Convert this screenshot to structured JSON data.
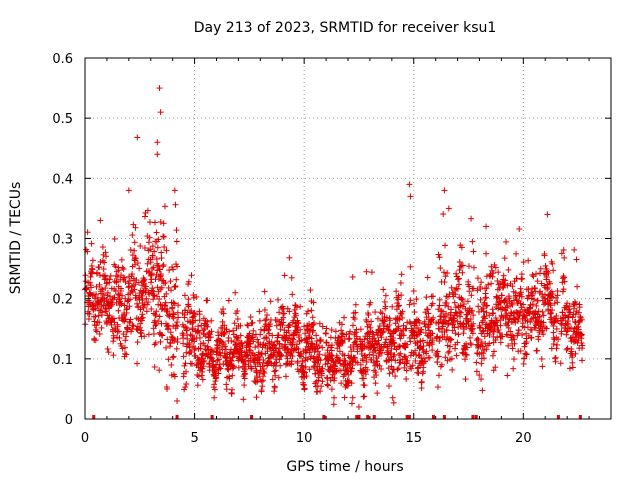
{
  "chart_data": {
    "type": "scatter",
    "marker": "plus",
    "title": "Day 213 of 2023, SRMTID for receiver ksu1",
    "xlabel": "GPS time / hours",
    "ylabel": "SRMTID / TECUs",
    "xlim": [
      0,
      24
    ],
    "ylim": [
      0,
      0.6
    ],
    "grid": true,
    "x_ticks": [
      0,
      5,
      10,
      15,
      20
    ],
    "x_tick_labels": [
      "0",
      "5",
      "10",
      "15",
      "20"
    ],
    "y_ticks": [
      0,
      0.1,
      0.2,
      0.3,
      0.4,
      0.5,
      0.6
    ],
    "y_tick_labels": [
      "0",
      "0.1",
      "0.2",
      "0.3",
      "0.4",
      "0.5",
      "0.6"
    ],
    "color": "#e00000",
    "series": [
      {
        "name": "SRMTID",
        "envelope_note": "approximate running level (center) and spread of the dense point cloud",
        "envelope": [
          {
            "x": 0.0,
            "center": 0.2,
            "spread": 0.05
          },
          {
            "x": 1.0,
            "center": 0.19,
            "spread": 0.06
          },
          {
            "x": 2.0,
            "center": 0.2,
            "spread": 0.07
          },
          {
            "x": 3.0,
            "center": 0.23,
            "spread": 0.1
          },
          {
            "x": 4.0,
            "center": 0.17,
            "spread": 0.09
          },
          {
            "x": 5.0,
            "center": 0.13,
            "spread": 0.06
          },
          {
            "x": 6.0,
            "center": 0.11,
            "spread": 0.04
          },
          {
            "x": 7.0,
            "center": 0.11,
            "spread": 0.04
          },
          {
            "x": 8.0,
            "center": 0.11,
            "spread": 0.05
          },
          {
            "x": 9.0,
            "center": 0.13,
            "spread": 0.05
          },
          {
            "x": 10.0,
            "center": 0.12,
            "spread": 0.05
          },
          {
            "x": 11.0,
            "center": 0.1,
            "spread": 0.04
          },
          {
            "x": 12.0,
            "center": 0.1,
            "spread": 0.05
          },
          {
            "x": 13.0,
            "center": 0.12,
            "spread": 0.05
          },
          {
            "x": 14.0,
            "center": 0.14,
            "spread": 0.06
          },
          {
            "x": 15.0,
            "center": 0.13,
            "spread": 0.06
          },
          {
            "x": 16.0,
            "center": 0.14,
            "spread": 0.06
          },
          {
            "x": 17.0,
            "center": 0.18,
            "spread": 0.08
          },
          {
            "x": 18.0,
            "center": 0.15,
            "spread": 0.07
          },
          {
            "x": 19.0,
            "center": 0.18,
            "spread": 0.06
          },
          {
            "x": 20.0,
            "center": 0.17,
            "spread": 0.05
          },
          {
            "x": 21.0,
            "center": 0.19,
            "spread": 0.06
          },
          {
            "x": 22.0,
            "center": 0.17,
            "spread": 0.06
          },
          {
            "x": 22.7,
            "center": 0.13,
            "spread": 0.04
          }
        ],
        "notable_points": [
          {
            "x": 3.4,
            "y": 0.55
          },
          {
            "x": 3.45,
            "y": 0.51
          },
          {
            "x": 3.3,
            "y": 0.46
          },
          {
            "x": 3.3,
            "y": 0.44
          },
          {
            "x": 2.0,
            "y": 0.38
          },
          {
            "x": 4.1,
            "y": 0.38
          },
          {
            "x": 14.8,
            "y": 0.39
          },
          {
            "x": 14.85,
            "y": 0.37
          },
          {
            "x": 16.4,
            "y": 0.38
          },
          {
            "x": 16.6,
            "y": 0.35
          },
          {
            "x": 21.1,
            "y": 0.34
          },
          {
            "x": 18.3,
            "y": 0.32
          },
          {
            "x": 0.7,
            "y": 0.33
          },
          {
            "x": 12.5,
            "y": 0.02
          },
          {
            "x": 4.2,
            "y": 0.03
          }
        ]
      }
    ],
    "zero_markers_x": [
      0.4,
      4.2,
      5.8,
      7.6,
      10.9,
      12.4,
      12.5,
      12.9,
      13.2,
      14.7,
      14.8,
      15.9,
      16.4,
      17.7,
      17.85,
      21.6,
      22.6
    ]
  }
}
